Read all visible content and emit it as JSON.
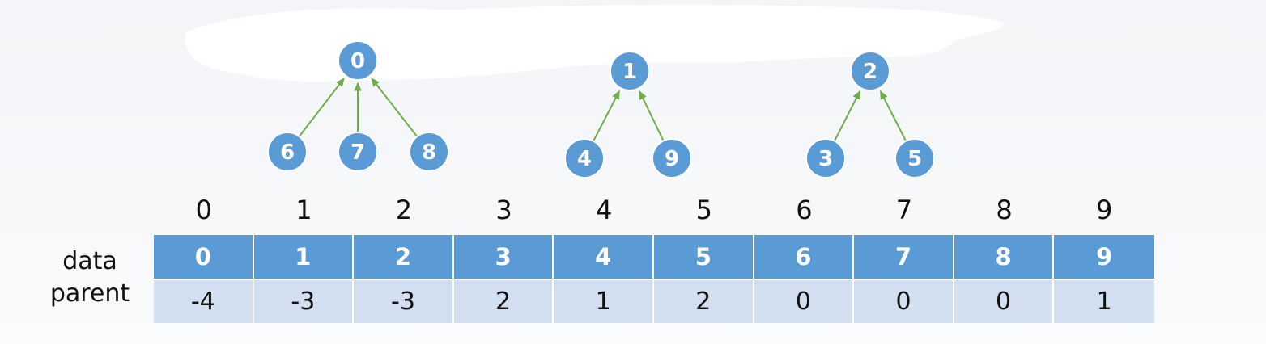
{
  "forest": {
    "nodes": [
      {
        "label": "0",
        "parent": null
      },
      {
        "label": "6",
        "parent": "0"
      },
      {
        "label": "7",
        "parent": "0"
      },
      {
        "label": "8",
        "parent": "0"
      },
      {
        "label": "1",
        "parent": null
      },
      {
        "label": "4",
        "parent": "1"
      },
      {
        "label": "9",
        "parent": "1"
      },
      {
        "label": "2",
        "parent": null
      },
      {
        "label": "3",
        "parent": "2"
      },
      {
        "label": "5",
        "parent": "2"
      }
    ]
  },
  "table": {
    "indices": [
      "0",
      "1",
      "2",
      "3",
      "4",
      "5",
      "6",
      "7",
      "8",
      "9"
    ],
    "data_label": "data",
    "parent_label": "parent",
    "data": [
      "0",
      "1",
      "2",
      "3",
      "4",
      "5",
      "6",
      "7",
      "8",
      "9"
    ],
    "parent": [
      "-4",
      "-3",
      "-3",
      "2",
      "1",
      "2",
      "0",
      "0",
      "0",
      "1"
    ]
  },
  "colors": {
    "node_fill": "#5b9bd5",
    "node_border": "#ffffff",
    "arrow": "#70ad47",
    "header_fill": "#5b9bd5",
    "row_fill": "#d2dff1"
  }
}
